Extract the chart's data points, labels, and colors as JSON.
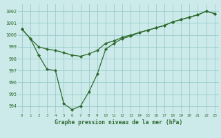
{
  "line1_y": [
    1000.5,
    999.7,
    999.0,
    998.8,
    998.7,
    998.5,
    998.3,
    998.2,
    998.4,
    998.7,
    999.3,
    999.5,
    999.8,
    1000.0,
    1000.2,
    1000.4,
    1000.6,
    1000.8,
    1001.1,
    1001.3,
    1001.5,
    1001.7,
    1002.0,
    1001.8
  ],
  "line2_y": [
    1000.5,
    999.7,
    998.3,
    997.1,
    997.0,
    994.2,
    993.7,
    994.0,
    995.2,
    996.7,
    998.8,
    999.3,
    999.7,
    999.9,
    1000.2,
    1000.4,
    1000.6,
    1000.8,
    1001.1,
    1001.3,
    1001.5,
    1001.7,
    1002.0,
    1001.8
  ],
  "line_color": "#2d6a2d",
  "bg_color": "#cceaea",
  "grid_color": "#99cccc",
  "xlabel": "Graphe pression niveau de la mer (hPa)",
  "ylim": [
    993.4,
    1002.6
  ],
  "yticks": [
    994,
    995,
    996,
    997,
    998,
    999,
    1000,
    1001,
    1002
  ],
  "xticks": [
    0,
    1,
    2,
    3,
    4,
    5,
    6,
    7,
    8,
    9,
    10,
    11,
    12,
    13,
    14,
    15,
    16,
    17,
    18,
    19,
    20,
    21,
    22,
    23
  ]
}
